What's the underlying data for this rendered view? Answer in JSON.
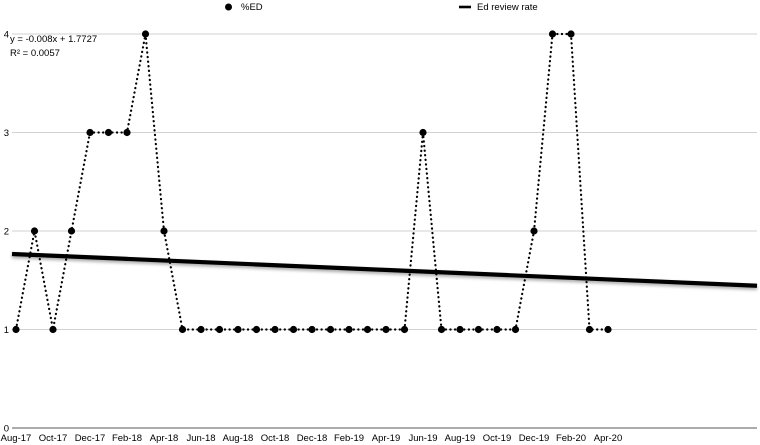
{
  "legend": {
    "items": [
      {
        "label": "%ED",
        "marker": "dot"
      },
      {
        "label": "Ed review rate",
        "marker": "solid-line"
      }
    ]
  },
  "annotation": {
    "equation": "y = -0.008x + 1.7727",
    "r_squared": "R² = 0.0057"
  },
  "colors": {
    "series": "#000000",
    "trendline": "#000000",
    "gridline": "#d2d2d2",
    "axis_line": "#595959",
    "text": "#000000",
    "background": "#ffffff"
  },
  "chart_data": {
    "type": "line",
    "title": "",
    "xlabel": "",
    "ylabel": "",
    "ylim": [
      0,
      4
    ],
    "yticks": [
      0,
      1,
      2,
      3,
      4
    ],
    "grid": true,
    "legend_position": "top",
    "categories": [
      "Aug-17",
      "Sep-17",
      "Oct-17",
      "Nov-17",
      "Dec-17",
      "Jan-18",
      "Feb-18",
      "Mar-18",
      "Apr-18",
      "May-18",
      "Jun-18",
      "Jul-18",
      "Aug-18",
      "Sep-18",
      "Oct-18",
      "Nov-18",
      "Dec-18",
      "Jan-19",
      "Feb-19",
      "Mar-19",
      "Apr-19",
      "May-19",
      "Jun-19",
      "Jul-19",
      "Aug-19",
      "Sep-19",
      "Oct-19",
      "Nov-19",
      "Dec-19",
      "Jan-20",
      "Feb-20",
      "Mar-20",
      "Apr-20"
    ],
    "x_tick_labels": [
      "Aug-17",
      "Oct-17",
      "Dec-17",
      "Feb-18",
      "Apr-18",
      "Jun-18",
      "Aug-18",
      "Oct-18",
      "Dec-18",
      "Feb-19",
      "Apr-19",
      "Jun-19",
      "Aug-19",
      "Oct-19",
      "Dec-19",
      "Feb-20",
      "Apr-20"
    ],
    "x_tick_step": 2,
    "series": [
      {
        "name": "%ED",
        "style": "dotted-with-markers",
        "values": [
          1,
          2,
          1,
          2,
          3,
          3,
          3,
          4,
          2,
          1,
          1,
          1,
          1,
          1,
          1,
          1,
          1,
          1,
          1,
          1,
          1,
          1,
          3,
          1,
          1,
          1,
          1,
          1,
          2,
          4,
          4,
          1,
          1
        ]
      },
      {
        "name": "Ed review rate",
        "style": "solid-trendline",
        "trend": {
          "slope": -0.008,
          "intercept": 1.7727
        }
      }
    ]
  }
}
